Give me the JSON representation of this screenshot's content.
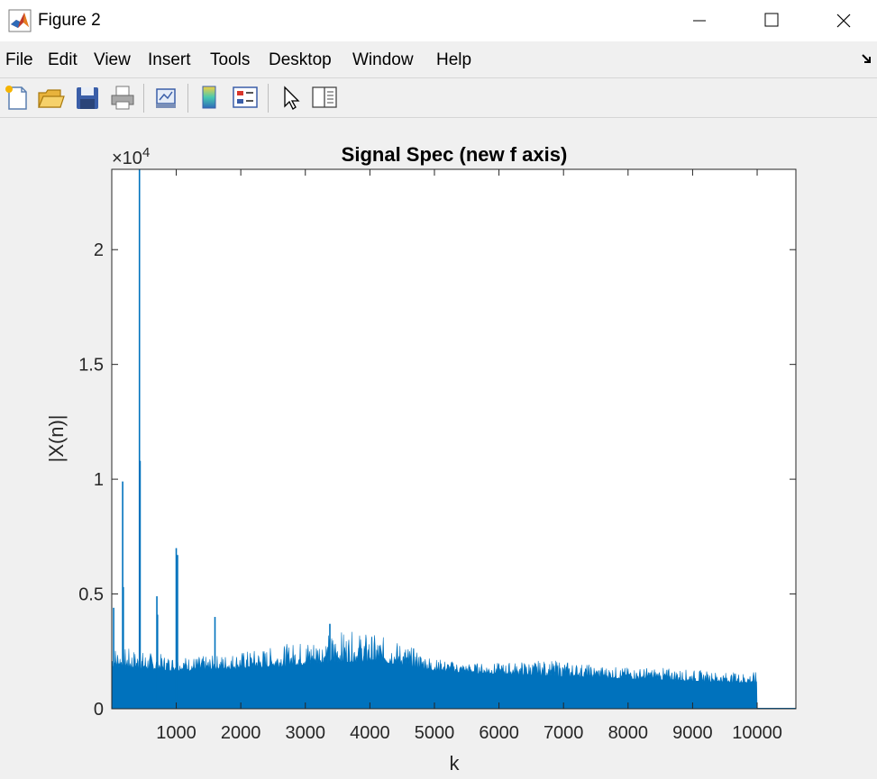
{
  "window": {
    "title": "Figure 2",
    "controls": [
      "minimize",
      "maximize",
      "close"
    ],
    "icon": "matlab-icon"
  },
  "menubar": {
    "items": [
      "File",
      "Edit",
      "View",
      "Insert",
      "Tools",
      "Desktop",
      "Window",
      "Help"
    ],
    "undock_icon": "dock-arrow-icon"
  },
  "toolbar": {
    "buttons": [
      {
        "name": "new-figure-button",
        "icon": "new-file-icon"
      },
      {
        "name": "open-file-button",
        "icon": "folder-open-icon"
      },
      {
        "name": "save-figure-button",
        "icon": "save-disk-icon"
      },
      {
        "name": "print-figure-button",
        "icon": "printer-icon"
      },
      {
        "name": "link-plot-button",
        "icon": "link-plot-icon"
      },
      {
        "name": "insert-colorbar-button",
        "icon": "colorbar-icon"
      },
      {
        "name": "insert-legend-button",
        "icon": "legend-icon"
      },
      {
        "name": "edit-plot-button",
        "icon": "pointer-arrow-icon"
      },
      {
        "name": "property-inspector-button",
        "icon": "panel-icon"
      }
    ]
  },
  "chart_data": {
    "type": "bar",
    "title": "Signal Spec (new f axis)",
    "xlabel": "k",
    "ylabel": "|X(n)|",
    "exponent_label": "×10",
    "exponent_power": "4",
    "xlim": [
      1,
      10600
    ],
    "ylim": [
      0,
      23500
    ],
    "xticks": [
      1000,
      2000,
      3000,
      4000,
      5000,
      6000,
      7000,
      8000,
      9000,
      10000
    ],
    "xtick_labels": [
      "1000",
      "2000",
      "3000",
      "4000",
      "5000",
      "6000",
      "7000",
      "8000",
      "9000",
      "10000"
    ],
    "yticks": [
      0,
      5000,
      10000,
      15000,
      20000
    ],
    "ytick_labels": [
      "0",
      "0.5",
      "1",
      "1.5",
      "2"
    ],
    "series_color": "#0072bd",
    "data_extent_k": 10000,
    "envelope": {
      "k": [
        0,
        500,
        1000,
        1500,
        2000,
        2500,
        3000,
        3500,
        4000,
        4500,
        5000,
        5500,
        6000,
        6500,
        7000,
        7500,
        8000,
        8500,
        9000,
        9500,
        10000
      ],
      "floor": [
        1800,
        1700,
        1650,
        1650,
        1750,
        1800,
        1900,
        2000,
        2050,
        1900,
        1650,
        1550,
        1500,
        1450,
        1400,
        1350,
        1300,
        1250,
        1200,
        1150,
        1100
      ],
      "max": [
        2800,
        2500,
        2300,
        2300,
        2500,
        2700,
        3000,
        3400,
        3300,
        2900,
        2200,
        2000,
        2000,
        2100,
        2100,
        1900,
        1800,
        1800,
        1700,
        1600,
        1600
      ]
    },
    "peaks": [
      {
        "k": 30,
        "value": 4400
      },
      {
        "k": 170,
        "value": 9900
      },
      {
        "k": 180,
        "value": 5300
      },
      {
        "k": 430,
        "value": 23500
      },
      {
        "k": 440,
        "value": 10800
      },
      {
        "k": 700,
        "value": 4900
      },
      {
        "k": 710,
        "value": 4100
      },
      {
        "k": 1000,
        "value": 7000
      },
      {
        "k": 1020,
        "value": 6700
      },
      {
        "k": 1600,
        "value": 4000
      },
      {
        "k": 3380,
        "value": 3700
      }
    ]
  }
}
